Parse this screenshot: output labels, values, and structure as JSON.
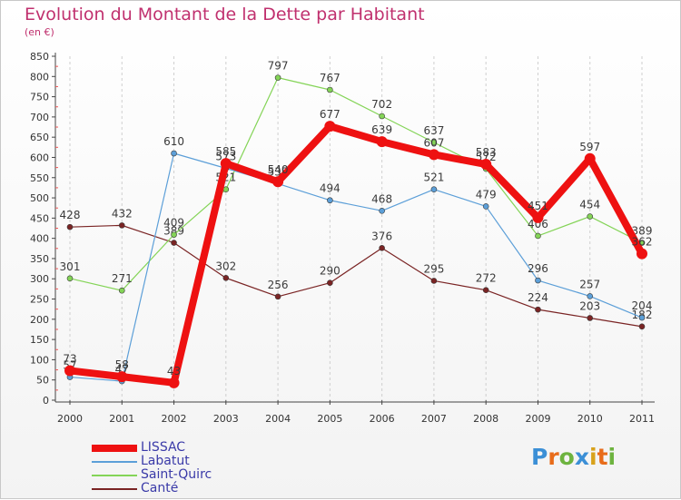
{
  "header": {
    "title": "Evolution du Montant de la Dette par Habitant",
    "subtitle": "(en €)"
  },
  "logo_text": "Proxiti",
  "chart_data": {
    "type": "line",
    "title": "Evolution du Montant de la Dette par Habitant",
    "subtitle": "(en €)",
    "xlabel": "",
    "ylabel": "",
    "x": [
      "2000",
      "2001",
      "2002",
      "2003",
      "2004",
      "2005",
      "2006",
      "2007",
      "2008",
      "2009",
      "2010",
      "2011"
    ],
    "ylim": [
      0,
      850
    ],
    "yticks": [
      0,
      50,
      100,
      150,
      200,
      250,
      300,
      350,
      400,
      450,
      500,
      550,
      600,
      650,
      700,
      750,
      800,
      850
    ],
    "grid": "vertical dashed",
    "legend_position": "bottom-left",
    "series": [
      {
        "name": "Canté",
        "color": "#7a2424",
        "values": [
          428,
          432,
          389,
          302,
          256,
          290,
          376,
          295,
          272,
          224,
          203,
          182
        ]
      },
      {
        "name": "Saint-Quirc",
        "color": "#84d457",
        "values": [
          301,
          271,
          409,
          521,
          797,
          767,
          702,
          637,
          572,
          406,
          454,
          389
        ]
      },
      {
        "name": "Labatut",
        "color": "#5c9fd8",
        "values": [
          57,
          47,
          610,
          573,
          535,
          494,
          468,
          521,
          479,
          296,
          257,
          204
        ]
      },
      {
        "name": "LISSAC",
        "color": "#ee1111",
        "values": [
          73,
          58,
          43,
          585,
          540,
          677,
          639,
          607,
          583,
          451,
          597,
          362
        ]
      }
    ]
  }
}
